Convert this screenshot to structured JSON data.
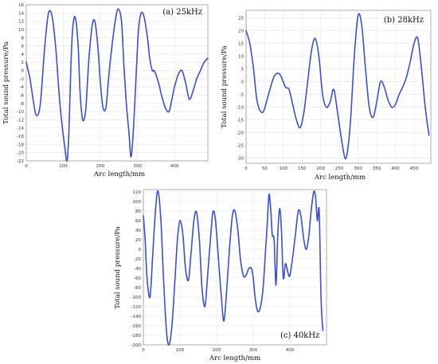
{
  "chart_data": [
    {
      "type": "line",
      "label": "(a) 25kHz",
      "xlabel": "Arc length/mm",
      "ylabel": "Total sound pressure/Pa",
      "xlim": [
        0,
        490
      ],
      "ylim": [
        -22,
        16
      ],
      "xticks": [
        0,
        100,
        200,
        300,
        400
      ],
      "yticks": [
        16,
        14,
        12,
        10,
        8,
        6,
        4,
        2,
        0,
        -2,
        -4,
        -6,
        -8,
        -10,
        -12,
        -14,
        -16,
        -18,
        -20,
        -22
      ],
      "grid": true,
      "color": "#3a4fd6",
      "x": [
        0,
        10,
        20,
        28,
        38,
        50,
        60,
        70,
        80,
        88,
        95,
        103,
        110,
        115,
        120,
        125,
        132,
        140,
        145,
        152,
        160,
        165,
        170,
        178,
        185,
        193,
        200,
        207,
        215,
        222,
        230,
        240,
        248,
        257,
        263,
        270,
        277,
        283,
        290,
        297,
        303,
        310,
        318,
        327,
        333,
        340,
        345,
        350,
        357,
        365,
        375,
        385,
        393,
        400,
        410,
        420,
        430,
        440,
        450,
        460,
        470,
        480,
        490
      ],
      "y": [
        2,
        -2,
        -8,
        -11,
        -8,
        6,
        14,
        13,
        5,
        -5,
        -12,
        -18,
        -22,
        -15,
        0,
        10,
        13,
        6,
        -5,
        -12,
        -10,
        -3,
        4,
        11,
        12,
        6,
        -3,
        -9,
        -9,
        -2,
        5,
        12,
        15,
        12,
        2,
        -8,
        -15,
        -21,
        -13,
        0,
        10,
        14,
        13,
        8,
        3,
        0,
        0,
        -1,
        -3,
        -6,
        -9,
        -10,
        -7,
        -4,
        -1,
        0,
        -3,
        -7,
        -5,
        -2,
        0,
        2,
        3
      ]
    },
    {
      "type": "line",
      "label": "(b) 28kHz",
      "xlabel": "Arc length/mm",
      "ylabel": "Total sound pressure/Pa",
      "xlim": [
        0,
        495
      ],
      "ylim": [
        -32,
        28
      ],
      "xticks": [
        0,
        50,
        100,
        150,
        200,
        250,
        300,
        350,
        400,
        450
      ],
      "yticks": [
        25,
        20,
        15,
        10,
        5,
        0,
        -5,
        -10,
        -15,
        -20,
        -25,
        -30
      ],
      "grid": true,
      "color": "#3a4fd6",
      "x": [
        0,
        10,
        20,
        30,
        45,
        60,
        75,
        90,
        105,
        115,
        125,
        135,
        145,
        155,
        165,
        175,
        185,
        195,
        205,
        215,
        225,
        235,
        245,
        255,
        265,
        272,
        280,
        290,
        300,
        310,
        320,
        330,
        340,
        350,
        360,
        370,
        380,
        390,
        400,
        410,
        420,
        430,
        440,
        450,
        460,
        470,
        480,
        490
      ],
      "y": [
        20,
        15,
        5,
        -8,
        -12,
        -5,
        2,
        3,
        -2,
        -3,
        -9,
        -15,
        -18,
        -12,
        0,
        12,
        17,
        10,
        -5,
        -10,
        -8,
        -3,
        -12,
        -22,
        -30,
        -27,
        -15,
        10,
        26,
        22,
        5,
        -10,
        -14,
        -8,
        0,
        -2,
        -7,
        -10,
        -9,
        -5,
        -2,
        2,
        8,
        15,
        17,
        5,
        -10,
        -21
      ]
    },
    {
      "type": "line",
      "label": "(c) 40kHz",
      "xlabel": "Arc length/mm",
      "ylabel": "Total sound pressure/Pa",
      "xlim": [
        0,
        500
      ],
      "ylim": [
        -200,
        125
      ],
      "xticks": [
        0,
        100,
        200,
        300,
        400
      ],
      "yticks": [
        120,
        100,
        80,
        60,
        40,
        20,
        0,
        -20,
        -40,
        -60,
        -80,
        -100,
        -120,
        -140,
        -160,
        -180,
        -200
      ],
      "grid": true,
      "color": "#3a4fd6",
      "x": [
        0,
        5,
        10,
        18,
        25,
        33,
        40,
        48,
        55,
        63,
        70,
        78,
        85,
        93,
        100,
        108,
        115,
        123,
        130,
        138,
        145,
        153,
        160,
        168,
        175,
        183,
        190,
        197,
        205,
        213,
        220,
        228,
        235,
        243,
        250,
        258,
        265,
        273,
        280,
        288,
        295,
        300,
        305,
        312,
        320,
        327,
        333,
        338,
        343,
        348,
        352,
        357,
        362,
        367,
        372,
        377,
        382,
        388,
        395,
        400,
        407,
        415,
        423,
        430,
        438,
        445,
        452,
        458,
        465,
        470,
        475,
        480,
        485,
        490
      ],
      "y": [
        70,
        20,
        -60,
        -100,
        -20,
        80,
        122,
        60,
        -60,
        -170,
        -200,
        -160,
        -80,
        20,
        60,
        30,
        -40,
        -65,
        -10,
        60,
        78,
        20,
        -80,
        -120,
        -60,
        20,
        78,
        60,
        -20,
        -100,
        -150,
        -80,
        0,
        70,
        80,
        40,
        -20,
        -55,
        -55,
        -40,
        -40,
        -60,
        -100,
        -130,
        -120,
        -80,
        -10,
        50,
        115,
        80,
        30,
        20,
        -75,
        30,
        85,
        40,
        -60,
        -30,
        -50,
        -55,
        -20,
        30,
        80,
        70,
        20,
        0,
        30,
        80,
        120,
        110,
        60,
        80,
        -100,
        -170
      ]
    }
  ]
}
